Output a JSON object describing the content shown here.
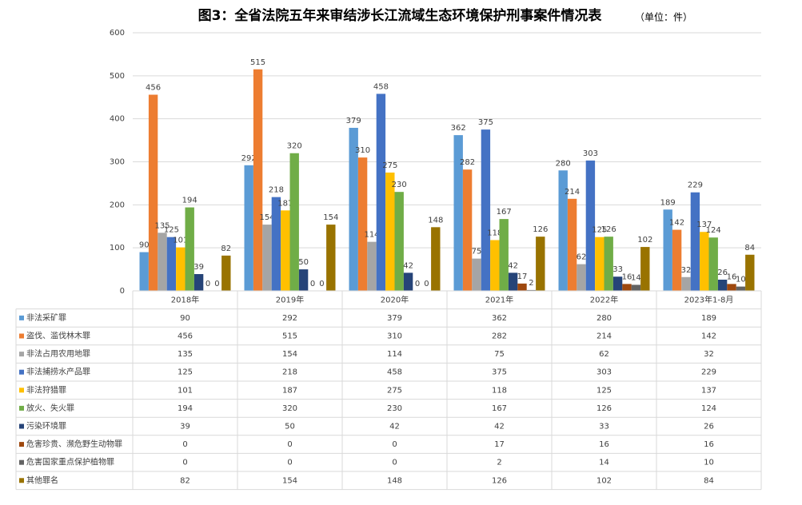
{
  "chart_data": {
    "type": "bar",
    "title": "图3：全省法院五年来审结涉长江流域生态环境保护刑事案件情况表",
    "subtitle": "（单位：件）",
    "categories": [
      "2018年",
      "2019年",
      "2020年",
      "2021年",
      "2022年",
      "2023年1-8月"
    ],
    "ylim": [
      0,
      600
    ],
    "yticks": [
      0,
      100,
      200,
      300,
      400,
      500,
      600
    ],
    "grid": true,
    "series": [
      {
        "name": "非法采矿罪",
        "color": "#5b9bd5",
        "values": [
          90,
          292,
          379,
          362,
          280,
          189
        ]
      },
      {
        "name": "盗伐、滥伐林木罪",
        "color": "#ed7d31",
        "values": [
          456,
          515,
          310,
          282,
          214,
          142
        ]
      },
      {
        "name": "非法占用农用地罪",
        "color": "#a5a5a5",
        "values": [
          135,
          154,
          114,
          75,
          62,
          32
        ]
      },
      {
        "name": "非法捕捞水产品罪",
        "color": "#4472c4",
        "values": [
          125,
          218,
          458,
          375,
          303,
          229
        ]
      },
      {
        "name": "非法狩猎罪",
        "color": "#ffc000",
        "values": [
          101,
          187,
          275,
          118,
          125,
          137
        ]
      },
      {
        "name": "放火、失火罪",
        "color": "#70ad47",
        "values": [
          194,
          320,
          230,
          167,
          126,
          124
        ]
      },
      {
        "name": "污染环境罪",
        "color": "#264478",
        "values": [
          39,
          50,
          42,
          42,
          33,
          26
        ]
      },
      {
        "name": "危害珍贵、濒危野生动物罪",
        "color": "#9e480e",
        "values": [
          0,
          0,
          0,
          17,
          16,
          16
        ]
      },
      {
        "name": "危害国家重点保护植物罪",
        "color": "#636363",
        "values": [
          0,
          0,
          0,
          2,
          14,
          10
        ]
      },
      {
        "name": "其他罪名",
        "color": "#997300",
        "values": [
          82,
          154,
          148,
          126,
          102,
          84
        ]
      }
    ]
  }
}
